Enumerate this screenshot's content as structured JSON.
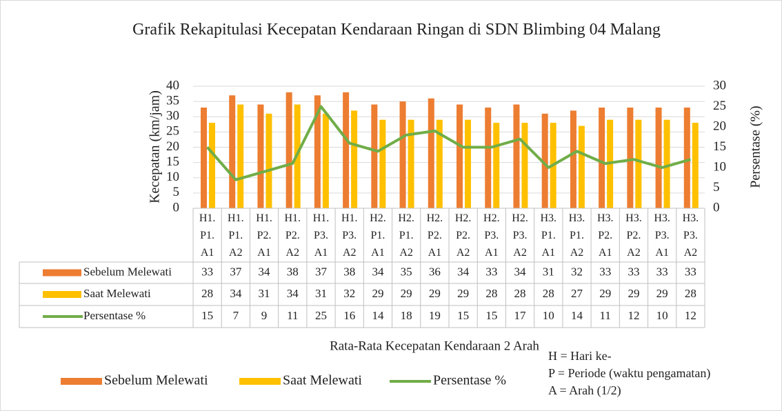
{
  "chart_data": {
    "type": "bar",
    "title": "Grafik Rekapitulasi Kecepatan Kendaraan Ringan di SDN Blimbing 04 Malang",
    "x_label": "Rata-Rata Kecepatan Kendaraan 2 Arah",
    "y_label": "Kecepatan (km/jam)",
    "y2_label": "Persentase (%)",
    "categories": [
      "H1. P1. A1",
      "H1. P1. A2",
      "H1. P2. A1",
      "H1. P2. A2",
      "H1. P3. A1",
      "H1. P3. A2",
      "H2. P1. A1",
      "H2. P1. A2",
      "H2. P2. A1",
      "H2. P2. A2",
      "H2. P3. A1",
      "H2. P3. A2",
      "H3. P1. A1",
      "H3. P1. A2",
      "H3. P2. A1",
      "H3. P2. A2",
      "H3. P3. A1",
      "H3. P3. A2"
    ],
    "series": [
      {
        "name": "Sebelum Melewati",
        "type": "bar",
        "color": "#ed7d31",
        "values": [
          33,
          37,
          34,
          38,
          37,
          38,
          34,
          35,
          36,
          34,
          33,
          34,
          31,
          32,
          33,
          33,
          33,
          33
        ]
      },
      {
        "name": "Saat Melewati",
        "type": "bar",
        "color": "#ffc000",
        "values": [
          28,
          34,
          31,
          34,
          31,
          32,
          29,
          29,
          29,
          29,
          28,
          28,
          28,
          27,
          29,
          29,
          29,
          28
        ]
      },
      {
        "name": "Persentase %",
        "type": "line",
        "axis": "y2",
        "color": "#70ad47",
        "values": [
          15,
          7,
          9,
          11,
          25,
          16,
          14,
          18,
          19,
          15,
          15,
          17,
          10,
          14,
          11,
          12,
          10,
          12
        ]
      }
    ],
    "ylim": [
      0,
      40
    ],
    "yticks": [
      0,
      5,
      10,
      15,
      20,
      25,
      30,
      35,
      40
    ],
    "y2lim": [
      0,
      30
    ],
    "y2ticks": [
      0,
      5,
      10,
      15,
      20,
      25,
      30
    ],
    "grid": true,
    "notes": [
      "H = Hari ke-",
      "P = Periode (waktu pengamatan)",
      "A = Arah (1/2)"
    ]
  }
}
